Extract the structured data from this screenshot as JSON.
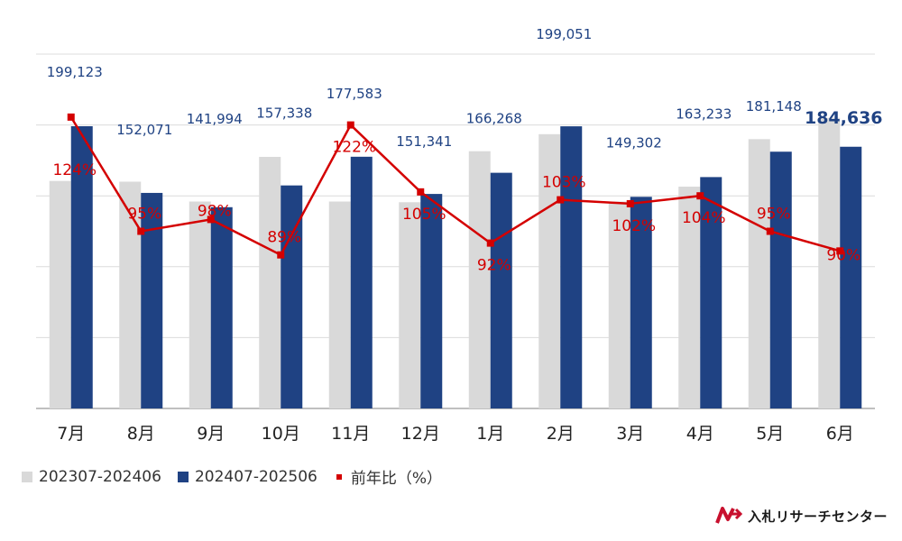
{
  "chart_data": {
    "type": "bar",
    "categories": [
      "7月",
      "8月",
      "9月",
      "10月",
      "11月",
      "12月",
      "1月",
      "2月",
      "3月",
      "4月",
      "5月",
      "6月"
    ],
    "series": [
      {
        "name": "202307-202406",
        "type": "bar",
        "color": "#d9d9d9",
        "values": [
          160500,
          160000,
          146000,
          177500,
          146000,
          145500,
          181500,
          193500,
          146000,
          156500,
          190000,
          205000
        ]
      },
      {
        "name": "202407-202506",
        "type": "bar",
        "color": "#1f4283",
        "values": [
          199123,
          152071,
          141994,
          157338,
          177583,
          151341,
          166268,
          199051,
          149302,
          163233,
          181148,
          184636
        ],
        "value_labels": [
          "199,123",
          "152,071",
          "141,994",
          "157,338",
          "177,583",
          "151,341",
          "166,268",
          "199,051",
          "149,302",
          "163,233",
          "181,148",
          "184,636"
        ]
      },
      {
        "name": "前年比（%）",
        "type": "line",
        "color": "#d40000",
        "values": [
          124,
          95,
          98,
          89,
          122,
          105,
          92,
          103,
          102,
          104,
          95,
          90
        ],
        "value_labels": [
          "124%",
          "95%",
          "98%",
          "89%",
          "122%",
          "105%",
          "92%",
          "103%",
          "102%",
          "104%",
          "95%",
          "90%"
        ]
      }
    ],
    "ylim": [
      0,
      250000
    ],
    "ratio_range": [
      50,
      140
    ],
    "grid": true,
    "legend_position": "bottom-left",
    "highlighted_label_index": 11
  },
  "legend": {
    "items": [
      {
        "label": "202307-202406",
        "color": "#d9d9d9"
      },
      {
        "label": "202407-202506",
        "color": "#1f4283"
      },
      {
        "label": "前年比（%）",
        "color": "#d40000"
      }
    ]
  },
  "logo": {
    "text": "入札リサーチセンター"
  }
}
